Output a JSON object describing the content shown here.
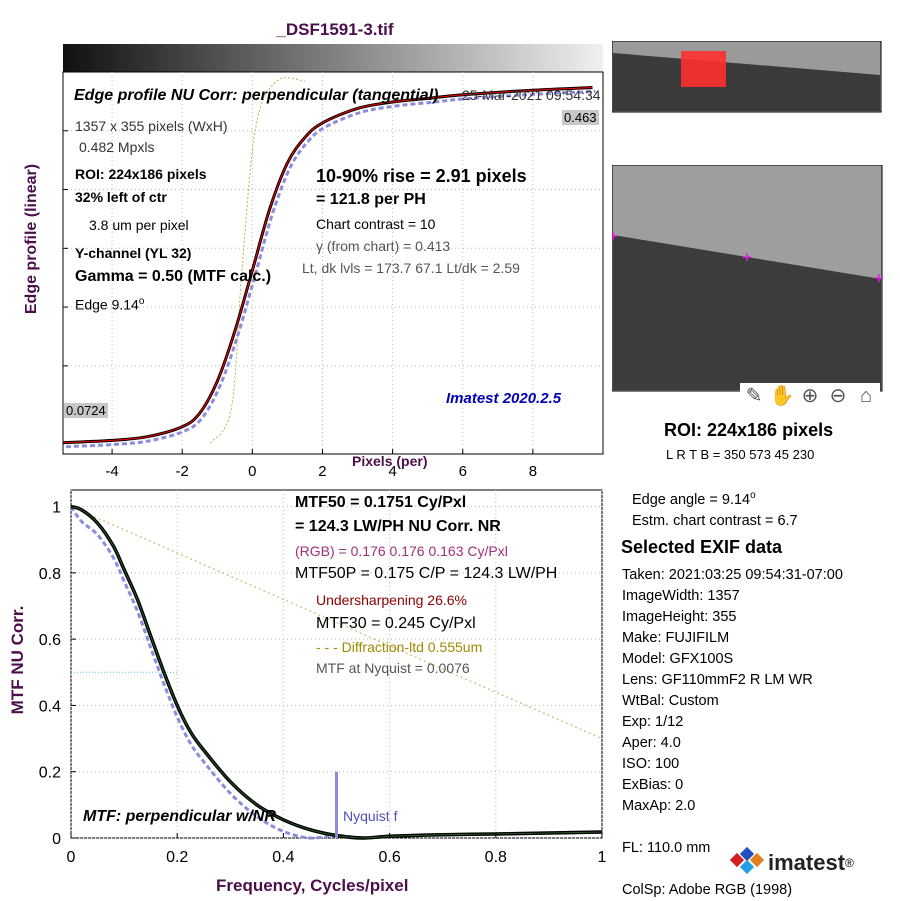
{
  "file_title": "_DSF1591-3.tif",
  "edge_panel": {
    "header": "Edge profile  NU Corr: perpendicular (tangential)",
    "timestamp": "25-Mar-2021 09:54:34",
    "dims": "1357 x 355 pixels (WxH)",
    "mpxls": "0.482 Mpxls",
    "roi": "ROI:  224x186 pixels",
    "left_of_ctr": "32% left of ctr",
    "um_per_pixel": "3.8 um per pixel",
    "channel": "Y-channel  (YL 32)",
    "gamma": "Gamma = 0.50 (MTF calc.)",
    "edge_label": "Edge   9.14",
    "edge_sup": "o",
    "rise": "10-90% rise = 2.91 pixels",
    "per_ph": "=  121.8 per PH",
    "chart_contrast": "Chart contrast = 10",
    "gamma_chart": "γ (from chart) = 0.413",
    "levels": "Lt, dk lvls = 173.7  67.1  Lt/dk = 2.59",
    "version": "Imatest 2020.2.5",
    "max_value": "0.463",
    "min_value": "0.0724",
    "ylabel": "Edge profile (linear)",
    "xlabel": "Pixels (per)"
  },
  "mtf_panel": {
    "mtf50": "MTF50 = 0.1751 Cy/Pxl",
    "lwph": "= 124.3 LW/PH  NU Corr.  NR",
    "rgb": "(RGB) = 0.176  0.176  0.163 Cy/Pxl",
    "mtf50p": "MTF50P = 0.175 C/P = 124.3 LW/PH",
    "undersharp": "Undersharpening 26.6%",
    "mtf30": "MTF30 = 0.245 Cy/Pxl",
    "diffraction": "- - - Diffraction-ltd  0.555um",
    "nyquist_mtf": "MTF at Nyquist = 0.0076",
    "bottom_label": "MTF: perpendicular w/NR",
    "nyquist_label": "Nyquist f",
    "ylabel": "MTF  NU Corr.",
    "xlabel": "Frequency, Cycles/pixel"
  },
  "roi_info": {
    "title": "ROI:  224x186 pixels",
    "lrtb": "L R  T B = 350 573  45 230"
  },
  "edge_info": {
    "angle": "Edge angle = 9.14",
    "angle_sup": "o",
    "contrast": "Estm. chart contrast = 6.7"
  },
  "exif": {
    "title": "Selected EXIF data",
    "lines": [
      "Taken: 2021:03:25 09:54:31-07:00",
      "ImageWidth:  1357",
      "ImageHeight:  355",
      "Make:  FUJIFILM",
      "Model:  GFX100S",
      "Lens:   GF110mmF2 R LM WR",
      "WtBal:  Custom",
      "Exp:    1/12",
      "Aper:   4.0",
      "ISO:    100",
      "ExBias:  0",
      "MaxAp:  2.0",
      "",
      "FL:     110.0 mm",
      "",
      "ColSp:  Adobe RGB (1998)"
    ]
  },
  "logo": {
    "text": "imatest",
    "reg": "®"
  },
  "toolbar": [
    "edit-icon",
    "pan-hand-icon",
    "zoom-in-icon",
    "zoom-out-icon",
    "home-icon"
  ],
  "colors": {
    "title": "#4b0f4b",
    "mtf_curve": "#000000",
    "ideal": "#8c8cdc",
    "red": "#ff0000",
    "diffraction": "#b4b450",
    "undersharp": "#8b0000",
    "rgb_text": "#a0307a",
    "version": "#0000b4"
  },
  "chart_data": [
    {
      "type": "line",
      "title": "Edge profile  NU Corr: perpendicular (tangential)",
      "xlabel": "Pixels (per)",
      "ylabel": "Edge profile (linear)",
      "xlim": [
        -5.4,
        10
      ],
      "ylim": [
        0.06,
        0.48
      ],
      "xticks": [
        -4,
        -2,
        0,
        2,
        4,
        6,
        8
      ],
      "grid": true,
      "series": [
        {
          "x": [
            -5.4,
            -4,
            -3,
            -2,
            -1.5,
            -1,
            -0.5,
            0,
            0.5,
            1,
            1.5,
            2,
            3,
            4,
            5,
            6,
            8,
            9.7
          ],
          "y": [
            0.0724,
            0.075,
            0.079,
            0.09,
            0.105,
            0.14,
            0.195,
            0.262,
            0.33,
            0.38,
            0.408,
            0.424,
            0.44,
            0.447,
            0.451,
            0.455,
            0.46,
            0.463
          ]
        }
      ]
    },
    {
      "type": "line",
      "title": "MTF: perpendicular w/NR",
      "xlabel": "Frequency, Cycles/pixel",
      "ylabel": "MTF  NU Corr.",
      "xlim": [
        0,
        1
      ],
      "ylim": [
        0,
        1.05
      ],
      "xticks": [
        0,
        0.2,
        0.4,
        0.6,
        0.8,
        1
      ],
      "yticks": [
        0,
        0.2,
        0.4,
        0.6,
        0.8,
        1
      ],
      "grid": true,
      "series": [
        {
          "name": "MTF",
          "x": [
            0,
            0.02,
            0.05,
            0.08,
            0.1,
            0.125,
            0.15,
            0.175,
            0.2,
            0.225,
            0.25,
            0.3,
            0.35,
            0.4,
            0.45,
            0.5,
            0.55,
            0.6,
            0.7,
            0.8,
            0.9,
            1.0
          ],
          "y": [
            1.0,
            0.99,
            0.95,
            0.88,
            0.81,
            0.72,
            0.61,
            0.5,
            0.4,
            0.32,
            0.265,
            0.17,
            0.1,
            0.055,
            0.025,
            0.0076,
            0.0,
            0.005,
            0.01,
            0.012,
            0.015,
            0.018
          ]
        },
        {
          "name": "Diffraction-ltd",
          "x": [
            0,
            1
          ],
          "y": [
            1.0,
            0.3
          ]
        }
      ],
      "annotations": {
        "nyquist_x": 0.5,
        "nyquist_bar_height": 0.2
      }
    }
  ]
}
